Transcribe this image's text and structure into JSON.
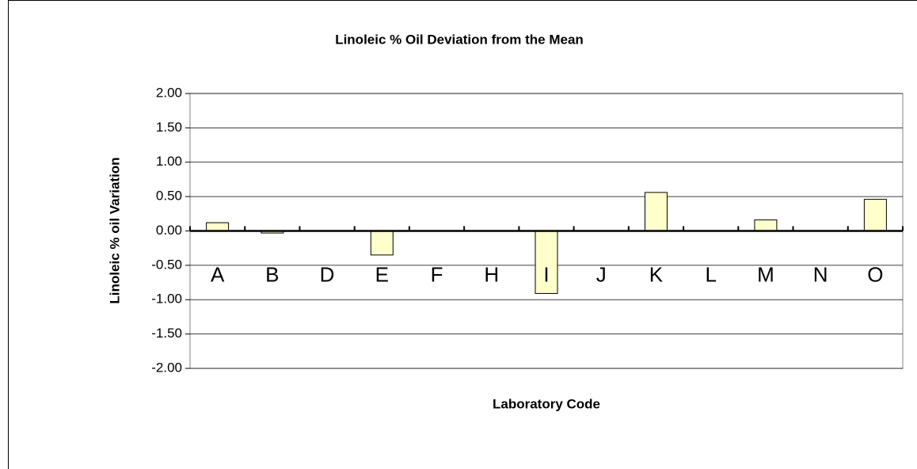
{
  "chart_data": {
    "type": "bar",
    "title": "Linoleic % Oil Deviation from the Mean",
    "x_label": "Laboratory Code",
    "y_label": "Linoleic % oil Variation",
    "categories": [
      "A",
      "B",
      "D",
      "E",
      "F",
      "H",
      "I",
      "J",
      "K",
      "L",
      "M",
      "N",
      "O"
    ],
    "values": [
      0.12,
      -0.03,
      0,
      -0.35,
      0,
      0,
      -0.91,
      0,
      0.56,
      0,
      0.16,
      0,
      0.46
    ],
    "color": "#ffffcc",
    "ylim": [
      -2,
      2
    ],
    "yticks": [
      {
        "value": 2,
        "label": "2.00"
      },
      {
        "value": 1.5,
        "label": "1.50"
      },
      {
        "value": 1,
        "label": "1.00"
      },
      {
        "value": 0.5,
        "label": "0.50"
      },
      {
        "value": 0,
        "label": "0.00"
      },
      {
        "value": -0.5,
        "label": "-0.50"
      },
      {
        "value": -1,
        "label": "-1.00"
      },
      {
        "value": -1.5,
        "label": "-1.50"
      },
      {
        "value": -2,
        "label": "-2.00"
      }
    ],
    "grid": true
  }
}
